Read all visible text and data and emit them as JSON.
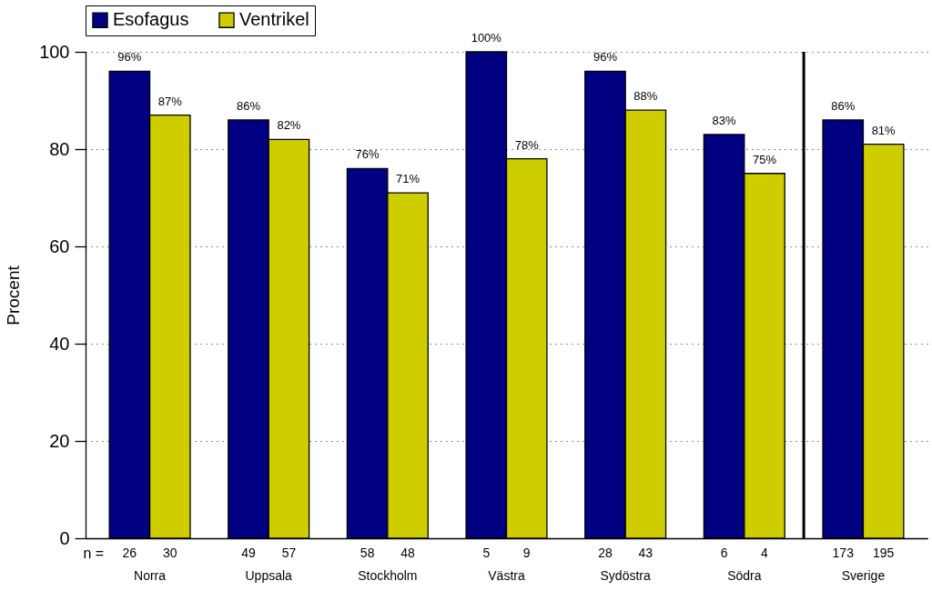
{
  "chart_data": {
    "type": "bar",
    "ylabel": "Procent",
    "categories": [
      "Norra",
      "Uppsala",
      "Stockholm",
      "Västra",
      "Sydöstra",
      "Södra",
      "Sverige"
    ],
    "series": [
      {
        "name": "Esofagus",
        "color": "#000080",
        "values": [
          96,
          86,
          76,
          100,
          96,
          83,
          86
        ],
        "value_labels": [
          "96%",
          "86%",
          "76%",
          "100%",
          "96%",
          "83%",
          "86%"
        ]
      },
      {
        "name": "Ventrikel",
        "color": "#cdcd00",
        "values": [
          87,
          82,
          71,
          78,
          88,
          75,
          81
        ],
        "value_labels": [
          "87%",
          "82%",
          "71%",
          "78%",
          "88%",
          "75%",
          "81%"
        ]
      }
    ],
    "ylim": [
      0,
      100
    ],
    "yticks": [
      0,
      20,
      40,
      60,
      80,
      100
    ],
    "grid": "y",
    "legend": "top",
    "ref_lines": [
      {
        "axis": "x",
        "value": "Sverige",
        "color": "#000000"
      }
    ],
    "annotations": [
      "n =",
      "26",
      "30",
      "49",
      "57",
      "58",
      "48",
      "5",
      "9",
      "28",
      "43",
      "6",
      "4",
      "173",
      "195"
    ]
  }
}
